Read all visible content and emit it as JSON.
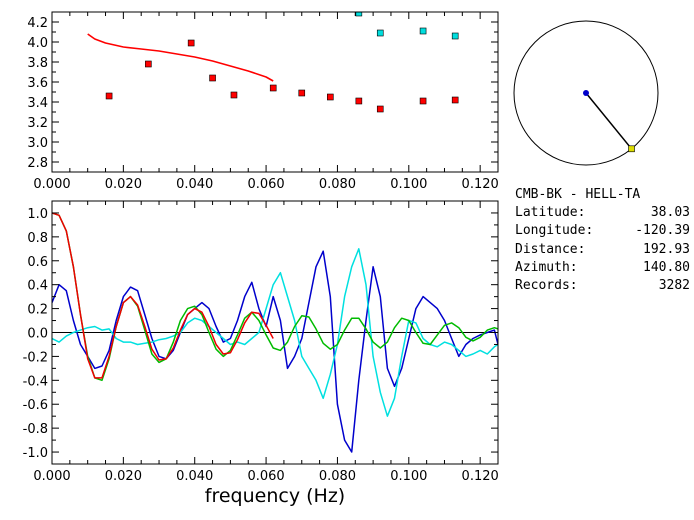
{
  "station_panel": {
    "pair": "CMB-BK - HELL-TA",
    "rows": [
      {
        "label": "Latitude:",
        "value": "38.03"
      },
      {
        "label": "Longitude:",
        "value": "-120.39"
      },
      {
        "label": "Distance:",
        "value": "192.93"
      },
      {
        "label": "Azimuth:",
        "value": "140.80"
      },
      {
        "label": "Records:",
        "value": "3282"
      }
    ]
  },
  "chart_data": [
    {
      "type": "scatter",
      "title": "",
      "xlabel": "",
      "ylabel": "",
      "xlim": [
        0,
        0.125
      ],
      "ylim": [
        2.7,
        4.3
      ],
      "xticks": [
        "0.000",
        "0.020",
        "0.040",
        "0.060",
        "0.080",
        "0.100",
        "0.120"
      ],
      "xtick_values": [
        0,
        0.02,
        0.04,
        0.06,
        0.08,
        0.1,
        0.12
      ],
      "yticks": [
        "2.8",
        "3.0",
        "3.2",
        "3.4",
        "3.6",
        "3.8",
        "4.0",
        "4.2"
      ],
      "ytick_values": [
        2.8,
        3.0,
        3.2,
        3.4,
        3.6,
        3.8,
        4.0,
        4.2
      ],
      "series": [
        {
          "color": "#ff0000",
          "kind": "markers",
          "x": [
            0.016,
            0.027,
            0.039,
            0.045,
            0.051,
            0.062,
            0.07,
            0.078,
            0.086,
            0.092,
            0.104,
            0.113
          ],
          "y": [
            3.46,
            3.78,
            3.99,
            3.64,
            3.47,
            3.54,
            3.49,
            3.45,
            3.41,
            3.33,
            3.41,
            3.42
          ]
        },
        {
          "color": "#00dddd",
          "kind": "markers",
          "x": [
            0.086,
            0.092,
            0.104,
            0.113
          ],
          "y": [
            4.29,
            4.09,
            4.11,
            4.06
          ]
        },
        {
          "color": "#ff0000",
          "kind": "line",
          "x": [
            0.01,
            0.012,
            0.015,
            0.02,
            0.025,
            0.03,
            0.035,
            0.04,
            0.045,
            0.05,
            0.055,
            0.06,
            0.062
          ],
          "y": [
            4.08,
            4.03,
            3.99,
            3.95,
            3.93,
            3.91,
            3.88,
            3.85,
            3.81,
            3.76,
            3.71,
            3.65,
            3.61
          ]
        }
      ]
    },
    {
      "type": "line",
      "title": "",
      "xlabel": "frequency (Hz)",
      "ylabel": "",
      "xlim": [
        0,
        0.125
      ],
      "ylim": [
        -1.1,
        1.1
      ],
      "xticks": [
        "0.000",
        "0.020",
        "0.040",
        "0.060",
        "0.080",
        "0.100",
        "0.120"
      ],
      "xtick_values": [
        0,
        0.02,
        0.04,
        0.06,
        0.08,
        0.1,
        0.12
      ],
      "yticks": [
        "1.0",
        "0.8",
        "0.6",
        "0.4",
        "0.2",
        "0.0",
        "-0.2",
        "-0.4",
        "-0.6",
        "-0.8",
        "-1.0"
      ],
      "ytick_values": [
        1.0,
        0.8,
        0.6,
        0.4,
        0.2,
        0.0,
        -0.2,
        -0.4,
        -0.6,
        -0.8,
        -1.0
      ],
      "series": [
        {
          "color": "#0000cc",
          "x": [
            0.0,
            0.002,
            0.004,
            0.006,
            0.008,
            0.01,
            0.012,
            0.014,
            0.016,
            0.018,
            0.02,
            0.022,
            0.024,
            0.026,
            0.028,
            0.03,
            0.032,
            0.034,
            0.036,
            0.038,
            0.04,
            0.042,
            0.044,
            0.046,
            0.048,
            0.05,
            0.052,
            0.054,
            0.056,
            0.058,
            0.06,
            0.062,
            0.064,
            0.066,
            0.068,
            0.07,
            0.072,
            0.074,
            0.076,
            0.078,
            0.08,
            0.082,
            0.084,
            0.086,
            0.088,
            0.09,
            0.092,
            0.094,
            0.096,
            0.098,
            0.1,
            0.102,
            0.104,
            0.106,
            0.108,
            0.11,
            0.112,
            0.114,
            0.116,
            0.118,
            0.12,
            0.122,
            0.124,
            0.125
          ],
          "y": [
            0.25,
            0.4,
            0.35,
            0.1,
            -0.1,
            -0.2,
            -0.3,
            -0.28,
            -0.15,
            0.1,
            0.3,
            0.38,
            0.35,
            0.15,
            -0.05,
            -0.2,
            -0.22,
            -0.15,
            0.0,
            0.15,
            0.2,
            0.25,
            0.2,
            0.05,
            -0.08,
            -0.05,
            0.1,
            0.3,
            0.42,
            0.2,
            0.05,
            0.3,
            0.1,
            -0.3,
            -0.2,
            -0.05,
            0.25,
            0.55,
            0.68,
            0.3,
            -0.6,
            -0.9,
            -1.0,
            -0.4,
            0.1,
            0.55,
            0.3,
            -0.3,
            -0.45,
            -0.3,
            -0.05,
            0.2,
            0.3,
            0.25,
            0.2,
            0.1,
            -0.05,
            -0.2,
            -0.1,
            -0.05,
            -0.02,
            0.0,
            0.02,
            -0.1
          ]
        },
        {
          "color": "#00e0e0",
          "x": [
            0.0,
            0.002,
            0.004,
            0.006,
            0.008,
            0.01,
            0.012,
            0.014,
            0.016,
            0.018,
            0.02,
            0.022,
            0.024,
            0.026,
            0.028,
            0.03,
            0.032,
            0.034,
            0.036,
            0.038,
            0.04,
            0.042,
            0.044,
            0.046,
            0.048,
            0.05,
            0.052,
            0.054,
            0.056,
            0.058,
            0.06,
            0.062,
            0.064,
            0.066,
            0.068,
            0.07,
            0.072,
            0.074,
            0.076,
            0.078,
            0.08,
            0.082,
            0.084,
            0.086,
            0.088,
            0.09,
            0.092,
            0.094,
            0.096,
            0.098,
            0.1,
            0.102,
            0.104,
            0.106,
            0.108,
            0.11,
            0.112,
            0.114,
            0.116,
            0.118,
            0.12,
            0.122,
            0.124,
            0.125
          ],
          "y": [
            -0.05,
            -0.08,
            -0.03,
            0.0,
            0.02,
            0.04,
            0.05,
            0.02,
            0.03,
            -0.05,
            -0.08,
            -0.08,
            -0.1,
            -0.09,
            -0.08,
            -0.06,
            -0.05,
            -0.03,
            0.0,
            0.08,
            0.12,
            0.1,
            0.05,
            0.0,
            -0.05,
            -0.1,
            -0.08,
            -0.1,
            -0.05,
            0.0,
            0.2,
            0.4,
            0.5,
            0.3,
            0.1,
            -0.2,
            -0.3,
            -0.4,
            -0.55,
            -0.35,
            -0.1,
            0.3,
            0.55,
            0.7,
            0.4,
            -0.2,
            -0.5,
            -0.7,
            -0.55,
            -0.2,
            0.1,
            0.08,
            -0.05,
            -0.1,
            -0.12,
            -0.08,
            -0.1,
            -0.15,
            -0.2,
            -0.18,
            -0.15,
            -0.18,
            -0.12,
            -0.1
          ]
        },
        {
          "color": "#00bb00",
          "x": [
            0.0,
            0.002,
            0.004,
            0.006,
            0.008,
            0.01,
            0.012,
            0.014,
            0.016,
            0.018,
            0.02,
            0.022,
            0.024,
            0.026,
            0.028,
            0.03,
            0.032,
            0.034,
            0.036,
            0.038,
            0.04,
            0.042,
            0.044,
            0.046,
            0.048,
            0.05,
            0.052,
            0.054,
            0.056,
            0.058,
            0.06,
            0.062,
            0.064,
            0.066,
            0.068,
            0.07,
            0.072,
            0.074,
            0.076,
            0.078,
            0.08,
            0.082,
            0.084,
            0.086,
            0.088,
            0.09,
            0.092,
            0.094,
            0.096,
            0.098,
            0.1,
            0.102,
            0.104,
            0.106,
            0.108,
            0.11,
            0.112,
            0.114,
            0.116,
            0.118,
            0.12,
            0.122,
            0.124,
            0.125
          ],
          "y": [
            1.0,
            0.98,
            0.85,
            0.55,
            0.15,
            -0.2,
            -0.38,
            -0.4,
            -0.22,
            0.05,
            0.25,
            0.3,
            0.22,
            0.02,
            -0.18,
            -0.25,
            -0.22,
            -0.08,
            0.1,
            0.2,
            0.22,
            0.15,
            0.0,
            -0.14,
            -0.2,
            -0.15,
            -0.02,
            0.12,
            0.17,
            0.1,
            -0.02,
            -0.13,
            -0.15,
            -0.08,
            0.05,
            0.14,
            0.13,
            0.03,
            -0.09,
            -0.14,
            -0.1,
            0.02,
            0.12,
            0.12,
            0.03,
            -0.08,
            -0.13,
            -0.08,
            0.04,
            0.12,
            0.1,
            0.0,
            -0.09,
            -0.1,
            -0.02,
            0.06,
            0.08,
            0.04,
            -0.04,
            -0.07,
            -0.04,
            0.02,
            0.04,
            0.03
          ]
        },
        {
          "color": "#ee0000",
          "x": [
            0.0,
            0.002,
            0.004,
            0.006,
            0.008,
            0.01,
            0.012,
            0.014,
            0.016,
            0.018,
            0.02,
            0.022,
            0.024,
            0.026,
            0.028,
            0.03,
            0.032,
            0.034,
            0.036,
            0.038,
            0.04,
            0.042,
            0.044,
            0.046,
            0.048,
            0.05,
            0.052,
            0.054,
            0.056,
            0.058,
            0.06,
            0.062
          ],
          "y": [
            1.0,
            0.98,
            0.85,
            0.55,
            0.15,
            -0.22,
            -0.38,
            -0.38,
            -0.2,
            0.05,
            0.25,
            0.3,
            0.23,
            0.05,
            -0.14,
            -0.23,
            -0.22,
            -0.13,
            0.02,
            0.15,
            0.2,
            0.17,
            0.05,
            -0.1,
            -0.18,
            -0.17,
            -0.06,
            0.08,
            0.17,
            0.16,
            0.06,
            -0.05
          ]
        }
      ]
    },
    {
      "type": "polar",
      "title": "",
      "azimuth_deg": 140.8,
      "marker_radius_fraction": 1.0,
      "line_color": "#000000",
      "center_color": "#0000cc",
      "marker_color": "#dddd00"
    }
  ]
}
